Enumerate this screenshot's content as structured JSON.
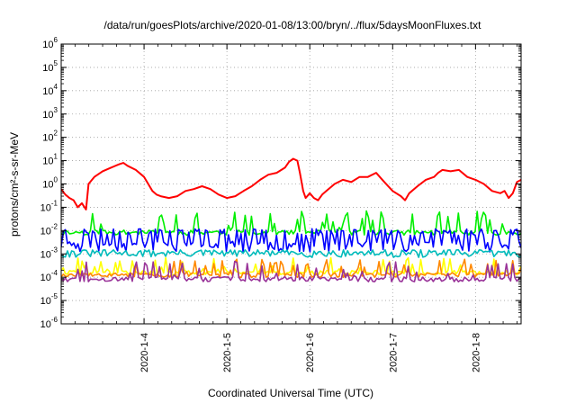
{
  "chart_data": {
    "type": "line",
    "title": "/data/run/goesPlots/archive/2020-01-08/13:00/bryn/../flux/5daysMoonFluxes.txt",
    "xlabel": "Coordinated Universal Time (UTC)",
    "ylabel": "protons/cm²-s-sr-MeV",
    "y_scale": "log",
    "ylim_exp": [
      -6,
      6
    ],
    "y_tick_exponents": [
      "-6",
      "-5",
      "-4",
      "-3",
      "-2",
      "-1",
      "0",
      "1",
      "2",
      "3",
      "4",
      "5",
      "6"
    ],
    "y_tick_base": "10",
    "xlim_days": [
      3.0,
      8.55
    ],
    "x_ticks": [
      {
        "label": "2020-1-4",
        "day": 4
      },
      {
        "label": "2020-1-5",
        "day": 5
      },
      {
        "label": "2020-1-6",
        "day": 6
      },
      {
        "label": "2020-1-7",
        "day": 7
      },
      {
        "label": "2020-1-8",
        "day": 8
      }
    ],
    "grid": true,
    "series": [
      {
        "color": "#00ee00",
        "kind": "spiky",
        "base": 0.008,
        "spike_max": 0.07,
        "seed": 11
      },
      {
        "color": "#0000ff",
        "kind": "band",
        "lo": 0.0015,
        "hi": 0.012,
        "seed": 23
      },
      {
        "color": "#00bbbb",
        "kind": "flat",
        "base": 0.0011,
        "var": 0.0004,
        "seed": 31
      },
      {
        "color": "#ffff00",
        "kind": "spiky",
        "base": 0.00015,
        "spike_max": 0.0007,
        "seed": 41
      },
      {
        "color": "#ff8800",
        "kind": "spiky",
        "base": 0.00012,
        "spike_max": 0.0006,
        "seed": 53
      },
      {
        "color": "#993399",
        "kind": "spiky",
        "base": 8e-05,
        "spike_max": 0.0005,
        "seed": 67
      },
      {
        "color": "#ff0000",
        "kind": "points",
        "points": [
          [
            3.0,
            0.6
          ],
          [
            3.05,
            0.35
          ],
          [
            3.1,
            0.25
          ],
          [
            3.15,
            0.2
          ],
          [
            3.2,
            0.1
          ],
          [
            3.25,
            0.15
          ],
          [
            3.3,
            0.08
          ],
          [
            3.33,
            1.0
          ],
          [
            3.4,
            2.0
          ],
          [
            3.5,
            3.5
          ],
          [
            3.6,
            5.0
          ],
          [
            3.7,
            7.0
          ],
          [
            3.75,
            8.0
          ],
          [
            3.8,
            6.0
          ],
          [
            3.9,
            4.0
          ],
          [
            4.0,
            2.0
          ],
          [
            4.05,
            1.0
          ],
          [
            4.1,
            0.5
          ],
          [
            4.15,
            0.35
          ],
          [
            4.2,
            0.3
          ],
          [
            4.3,
            0.25
          ],
          [
            4.4,
            0.3
          ],
          [
            4.5,
            0.5
          ],
          [
            4.6,
            0.6
          ],
          [
            4.7,
            0.8
          ],
          [
            4.8,
            0.6
          ],
          [
            4.9,
            0.35
          ],
          [
            5.0,
            0.25
          ],
          [
            5.1,
            0.3
          ],
          [
            5.2,
            0.5
          ],
          [
            5.3,
            0.8
          ],
          [
            5.4,
            1.5
          ],
          [
            5.5,
            2.5
          ],
          [
            5.6,
            3.0
          ],
          [
            5.7,
            5.0
          ],
          [
            5.75,
            9.0
          ],
          [
            5.8,
            12.0
          ],
          [
            5.85,
            10.0
          ],
          [
            5.88,
            3.0
          ],
          [
            5.92,
            0.5
          ],
          [
            5.95,
            0.25
          ],
          [
            6.0,
            0.4
          ],
          [
            6.05,
            0.25
          ],
          [
            6.1,
            0.2
          ],
          [
            6.15,
            0.35
          ],
          [
            6.2,
            0.5
          ],
          [
            6.3,
            1.0
          ],
          [
            6.4,
            1.5
          ],
          [
            6.5,
            1.2
          ],
          [
            6.6,
            2.0
          ],
          [
            6.7,
            2.0
          ],
          [
            6.8,
            3.0
          ],
          [
            6.9,
            1.2
          ],
          [
            7.0,
            0.5
          ],
          [
            7.1,
            0.3
          ],
          [
            7.15,
            0.2
          ],
          [
            7.2,
            0.4
          ],
          [
            7.3,
            0.8
          ],
          [
            7.4,
            1.5
          ],
          [
            7.5,
            2.0
          ],
          [
            7.55,
            3.0
          ],
          [
            7.6,
            4.0
          ],
          [
            7.7,
            3.5
          ],
          [
            7.8,
            4.0
          ],
          [
            7.9,
            2.0
          ],
          [
            8.0,
            1.5
          ],
          [
            8.1,
            1.0
          ],
          [
            8.2,
            0.5
          ],
          [
            8.3,
            0.4
          ],
          [
            8.35,
            0.5
          ],
          [
            8.4,
            0.25
          ],
          [
            8.45,
            0.4
          ],
          [
            8.5,
            1.2
          ],
          [
            8.55,
            1.5
          ]
        ]
      }
    ]
  }
}
